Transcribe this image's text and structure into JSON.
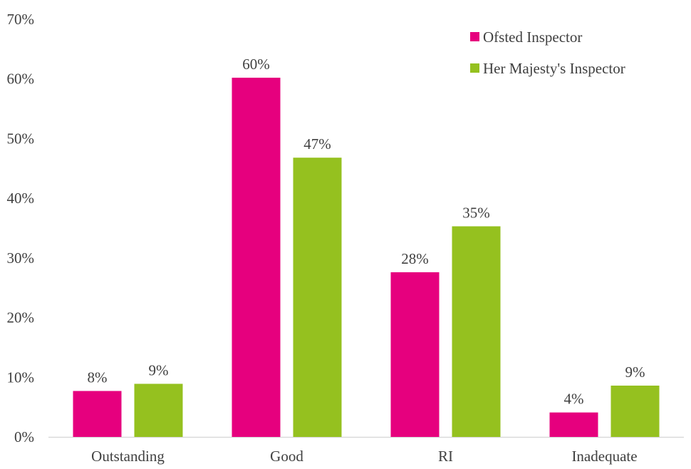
{
  "chart_data": {
    "type": "bar",
    "title": "",
    "xlabel": "",
    "ylabel": "",
    "categories": [
      "Outstanding",
      "Good",
      "RI",
      "Inadequate"
    ],
    "series": [
      {
        "name": "Ofsted Inspector",
        "color": "#e6007e",
        "values": [
          7.7,
          60.2,
          27.6,
          4.1
        ],
        "labels": [
          "8%",
          "60%",
          "28%",
          "4%"
        ]
      },
      {
        "name": "Her Majesty's Inspector",
        "color": "#95c11f",
        "values": [
          8.9,
          46.8,
          35.3,
          8.6
        ],
        "labels": [
          "9%",
          "47%",
          "35%",
          "9%"
        ]
      }
    ],
    "ylim": [
      0,
      70
    ],
    "yticks": [
      0,
      10,
      20,
      30,
      40,
      50,
      60,
      70
    ],
    "ytick_labels": [
      "0%",
      "10%",
      "20%",
      "30%",
      "40%",
      "50%",
      "60%",
      "70%"
    ],
    "grid": false,
    "legend_position": "top-right"
  }
}
